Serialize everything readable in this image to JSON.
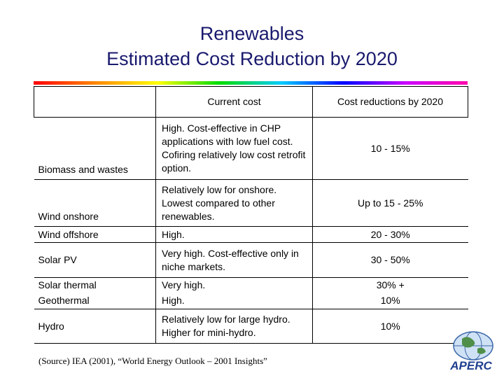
{
  "title": {
    "line1": "Renewables",
    "line2": "Estimated Cost Reduction by 2020"
  },
  "table": {
    "headers": [
      "",
      "Current cost",
      "Cost reductions by 2020"
    ],
    "rows": [
      {
        "name": "Biomass and wastes",
        "cost": "High. Cost-effective in CHP applications with low fuel cost. Cofiring relatively low cost retrofit option.",
        "reduction": "10 - 15%"
      },
      {
        "name": "Wind onshore",
        "cost": "Relatively low for onshore. Lowest compared to other renewables.",
        "reduction": "Up to 15 - 25%"
      },
      {
        "name": "Wind offshore",
        "cost": "High.",
        "reduction": "20 - 30%"
      },
      {
        "name": "Solar PV",
        "cost": "Very high. Cost-effective only in niche markets.",
        "reduction": "30 - 50%"
      },
      {
        "name": "Solar thermal",
        "cost": "Very high.",
        "reduction": "30% +"
      },
      {
        "name": "Geothermal",
        "cost": "High.",
        "reduction": "10%"
      },
      {
        "name": "Hydro",
        "cost": "Relatively low for large hydro. Higher for mini-hydro.",
        "reduction": "10%"
      }
    ]
  },
  "source": "(Source) IEA (2001), “World Energy Outlook – 2001 Insights”",
  "logo": {
    "text": "APERC",
    "icon": "globe-icon"
  }
}
